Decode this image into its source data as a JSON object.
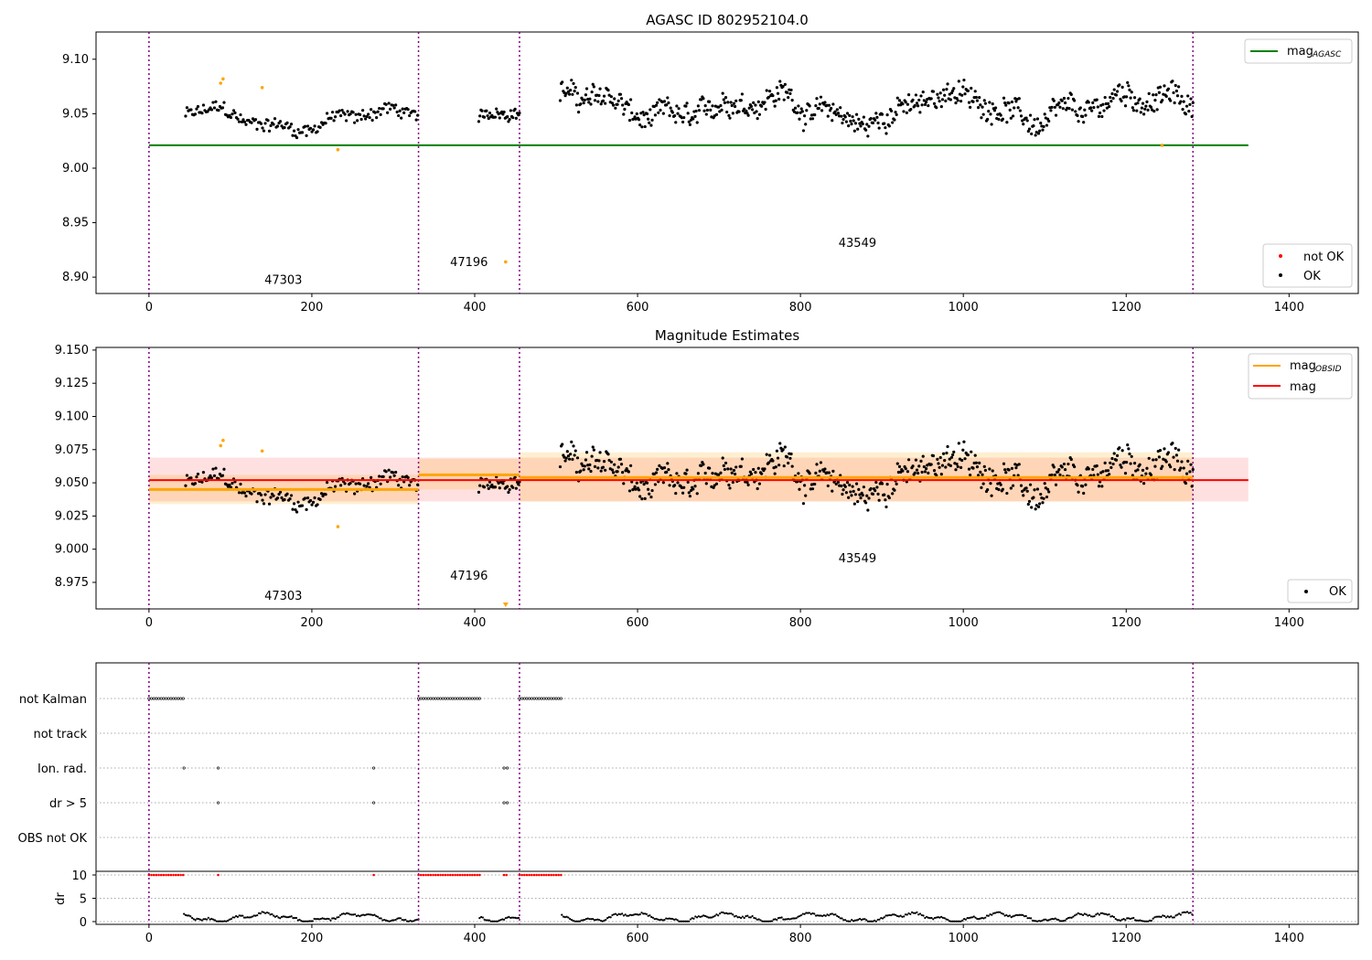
{
  "chart_data": [
    {
      "type": "scatter",
      "title": "AGASC ID 802952104.0",
      "xlim": [
        -65,
        1485
      ],
      "ylim": [
        8.885,
        9.125
      ],
      "xticks": [
        0,
        200,
        400,
        600,
        800,
        1000,
        1200,
        1400
      ],
      "yticks": [
        8.9,
        8.95,
        9.0,
        9.05,
        9.1
      ],
      "ytick_labels": [
        "8.90",
        "8.95",
        "9.00",
        "9.05",
        "9.10"
      ],
      "obs_boundaries": [
        0,
        331,
        455,
        1282
      ],
      "obsids": [
        {
          "label": "47303",
          "x": 165,
          "y": 8.894
        },
        {
          "label": "47196",
          "x": 393,
          "y": 8.91
        },
        {
          "label": "43549",
          "x": 870,
          "y": 8.928
        }
      ],
      "lines": [
        {
          "name": "mag",
          "subscript": "AGASC",
          "color": "#008000",
          "x": [
            0,
            1350
          ],
          "y": [
            9.021,
            9.021
          ]
        }
      ],
      "legend_upper": "upper right",
      "legend_lower": [
        {
          "name": "not OK",
          "color": "#ff0000"
        },
        {
          "name": "OK",
          "color": "#000000"
        }
      ],
      "legend_lower_loc": "lower right",
      "segments": [
        {
          "x0": 45,
          "x1": 330,
          "level": 9.045,
          "amp": 0.012,
          "n": 170
        },
        {
          "x0": 405,
          "x1": 455,
          "level": 9.055,
          "amp": 0.01,
          "n": 38
        },
        {
          "x0": 505,
          "x1": 1282,
          "level": 9.055,
          "amp": 0.02,
          "n": 620
        }
      ],
      "special_points": [
        {
          "x": 88,
          "y": 9.078,
          "color": "#ffa500"
        },
        {
          "x": 91,
          "y": 9.082,
          "color": "#ffa500"
        },
        {
          "x": 139,
          "y": 9.074,
          "color": "#ffa500"
        },
        {
          "x": 232,
          "y": 9.017,
          "color": "#ffa500"
        },
        {
          "x": 438,
          "y": 8.914,
          "color": "#ffa500"
        },
        {
          "x": 1244,
          "y": 9.021,
          "color": "#ffa500"
        }
      ]
    },
    {
      "type": "scatter",
      "title": "Magnitude Estimates",
      "xlim": [
        -65,
        1485
      ],
      "ylim": [
        8.955,
        9.152
      ],
      "xticks": [
        0,
        200,
        400,
        600,
        800,
        1000,
        1200,
        1400
      ],
      "yticks": [
        8.975,
        9.0,
        9.025,
        9.05,
        9.075,
        9.1,
        9.125,
        9.15
      ],
      "ytick_labels": [
        "8.975",
        "9.000",
        "9.025",
        "9.050",
        "9.075",
        "9.100",
        "9.125",
        "9.150"
      ],
      "obs_boundaries": [
        0,
        331,
        455,
        1282
      ],
      "obsids": [
        {
          "label": "47303",
          "x": 165,
          "y": 8.962
        },
        {
          "label": "47196",
          "x": 393,
          "y": 8.977
        },
        {
          "label": "43549",
          "x": 870,
          "y": 8.99
        }
      ],
      "mag": {
        "name": "mag",
        "color": "#ff0000",
        "value": 9.052,
        "band": [
          9.036,
          9.069
        ],
        "x": [
          0,
          1350
        ]
      },
      "mag_obsid": [
        {
          "x0": 0,
          "x1": 331,
          "value": 9.045,
          "band": [
            9.034,
            9.056
          ]
        },
        {
          "x0": 331,
          "x1": 455,
          "value": 9.056,
          "band": [
            9.045,
            9.068
          ]
        },
        {
          "x0": 455,
          "x1": 1282,
          "value": 9.054,
          "band": [
            9.036,
            9.073
          ]
        }
      ],
      "mag_obsid_label": {
        "name": "mag",
        "subscript": "OBSID",
        "color": "#ffa500"
      },
      "legend_upper": "upper right",
      "legend_lower": [
        {
          "name": "OK",
          "color": "#000000"
        }
      ],
      "legend_lower_loc": "lower right",
      "special_points": [
        {
          "x": 88,
          "y": 9.078,
          "color": "#ffa500"
        },
        {
          "x": 91,
          "y": 9.082,
          "color": "#ffa500"
        },
        {
          "x": 139,
          "y": 9.074,
          "color": "#ffa500"
        },
        {
          "x": 232,
          "y": 9.017,
          "color": "#ffa500"
        }
      ],
      "offscale_marker": {
        "x": 438,
        "color": "#ffa500"
      }
    },
    {
      "type": "scatter",
      "title": "",
      "xlim": [
        -65,
        1485
      ],
      "xticks": [
        0,
        200,
        400,
        600,
        800,
        1000,
        1200,
        1400
      ],
      "obs_boundaries": [
        0,
        331,
        455,
        1282
      ],
      "flag_rows": [
        "not Kalman",
        "not track",
        "Ion. rad.",
        "dr > 5",
        "OBS not OK"
      ],
      "flags": {
        "not Kalman": [
          [
            0,
            43
          ],
          [
            331,
            406
          ],
          [
            455,
            507
          ]
        ],
        "not track": [],
        "Ion. rad.": [
          [
            43,
            43
          ],
          [
            85,
            85
          ],
          [
            276,
            276
          ],
          [
            436,
            436
          ],
          [
            440,
            440
          ]
        ],
        "dr > 5": [
          [
            85,
            85
          ],
          [
            276,
            276
          ],
          [
            436,
            436
          ],
          [
            440,
            440
          ]
        ],
        "OBS not OK": []
      },
      "dr": {
        "ylabel": "dr",
        "ylim": [
          -0.5,
          10.5
        ],
        "yticks": [
          0,
          5,
          10
        ],
        "clipped_value": 10,
        "clipped_color": "#ff0000",
        "clipped_ranges": [
          [
            0,
            43
          ],
          [
            85,
            85
          ],
          [
            276,
            276
          ],
          [
            331,
            406
          ],
          [
            436,
            440
          ],
          [
            455,
            507
          ]
        ],
        "segments": [
          [
            43,
            331
          ],
          [
            406,
            455
          ],
          [
            507,
            1282
          ]
        ]
      }
    }
  ]
}
